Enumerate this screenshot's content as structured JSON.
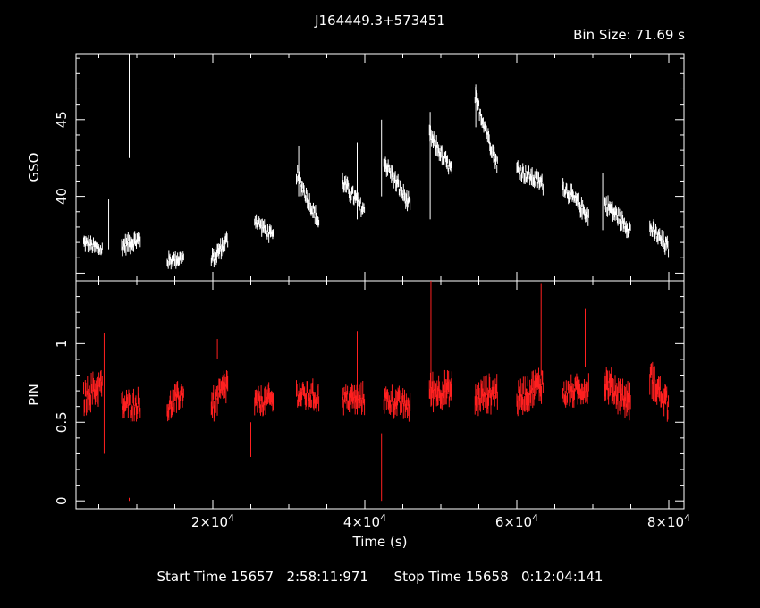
{
  "title": "J164449.3+573451",
  "bin_size": "Bin Size: 71.69 s",
  "footer": {
    "start_label": "Start Time 15657",
    "start_time": "2:58:11:971",
    "stop_label": "Stop Time 15658",
    "stop_time": "0:12:04:141"
  },
  "colors": {
    "gso": "#ffffff",
    "pin": "#ff2020",
    "axes": "#ffffff",
    "background": "#000000"
  },
  "chart_data": [
    {
      "type": "scatter",
      "name": "GSO panel",
      "ylabel": "GSO",
      "xlabel": "",
      "xlim": [
        2000,
        82000
      ],
      "ylim": [
        34.5,
        49.3
      ],
      "yticks": [
        {
          "value": 40,
          "label": "40"
        },
        {
          "value": 45,
          "label": "45"
        }
      ],
      "series": [
        {
          "segments": [
            {
              "t0": 3000,
              "t1": 5500,
              "y0": 37.0,
              "y1": 36.5,
              "noise": 0.6
            },
            {
              "t0": 8000,
              "t1": 10500,
              "y0": 36.8,
              "y1": 37.2,
              "noise": 0.7
            },
            {
              "t0": 14000,
              "t1": 16200,
              "y0": 35.8,
              "y1": 36.0,
              "noise": 0.6
            },
            {
              "t0": 19800,
              "t1": 22000,
              "y0": 35.8,
              "y1": 37.2,
              "noise": 0.7
            },
            {
              "t0": 25500,
              "t1": 28000,
              "y0": 38.5,
              "y1": 37.3,
              "noise": 0.6
            },
            {
              "t0": 31000,
              "t1": 34000,
              "y0": 41.5,
              "y1": 38.2,
              "noise": 0.7
            },
            {
              "t0": 37000,
              "t1": 40000,
              "y0": 41.0,
              "y1": 39.0,
              "noise": 0.7
            },
            {
              "t0": 42500,
              "t1": 46000,
              "y0": 42.3,
              "y1": 39.3,
              "noise": 0.7
            },
            {
              "t0": 48500,
              "t1": 51500,
              "y0": 44.0,
              "y1": 41.6,
              "noise": 0.7
            },
            {
              "t0": 54500,
              "t1": 57500,
              "y0": 46.5,
              "y1": 42.0,
              "noise": 0.7
            },
            {
              "t0": 60000,
              "t1": 63500,
              "y0": 41.8,
              "y1": 40.8,
              "noise": 0.7
            },
            {
              "t0": 66000,
              "t1": 69500,
              "y0": 40.7,
              "y1": 38.7,
              "noise": 0.7
            },
            {
              "t0": 71500,
              "t1": 75000,
              "y0": 39.6,
              "y1": 37.8,
              "noise": 0.7
            },
            {
              "t0": 77500,
              "t1": 80000,
              "y0": 38.0,
              "y1": 36.6,
              "noise": 0.7
            }
          ],
          "spikes": [
            {
              "t": 9000,
              "ylo": 42.5,
              "yhi": 49.3
            },
            {
              "t": 6300,
              "ylo": 36.5,
              "yhi": 39.8
            },
            {
              "t": 31300,
              "ylo": 40.0,
              "yhi": 43.3
            },
            {
              "t": 39000,
              "ylo": 38.5,
              "yhi": 43.5
            },
            {
              "t": 42200,
              "ylo": 40.0,
              "yhi": 45.0
            },
            {
              "t": 48600,
              "ylo": 38.5,
              "yhi": 45.5
            },
            {
              "t": 54600,
              "ylo": 44.5,
              "yhi": 47.3
            },
            {
              "t": 71300,
              "ylo": 37.8,
              "yhi": 41.5
            }
          ]
        }
      ]
    },
    {
      "type": "scatter",
      "name": "PIN panel",
      "ylabel": "PIN",
      "xlabel": "Time (s)",
      "xlim": [
        2000,
        82000
      ],
      "ylim": [
        -0.05,
        1.4
      ],
      "yticks": [
        {
          "value": 0,
          "label": "0"
        },
        {
          "value": 0.5,
          "label": "0.5"
        },
        {
          "value": 1,
          "label": "1"
        }
      ],
      "xticks": [
        {
          "value": 20000,
          "mantissa": "2",
          "exponent": "4"
        },
        {
          "value": 40000,
          "mantissa": "4",
          "exponent": "4"
        },
        {
          "value": 60000,
          "mantissa": "6",
          "exponent": "4"
        },
        {
          "value": 80000,
          "mantissa": "8",
          "exponent": "4"
        }
      ],
      "series": [
        {
          "segments": [
            {
              "t0": 3000,
              "t1": 5500,
              "y0": 0.65,
              "y1": 0.75,
              "noise": 0.12
            },
            {
              "t0": 8000,
              "t1": 10500,
              "y0": 0.6,
              "y1": 0.62,
              "noise": 0.1
            },
            {
              "t0": 14000,
              "t1": 16200,
              "y0": 0.58,
              "y1": 0.7,
              "noise": 0.1
            },
            {
              "t0": 19800,
              "t1": 22000,
              "y0": 0.6,
              "y1": 0.75,
              "noise": 0.12
            },
            {
              "t0": 25500,
              "t1": 28000,
              "y0": 0.62,
              "y1": 0.65,
              "noise": 0.1
            },
            {
              "t0": 31000,
              "t1": 34000,
              "y0": 0.68,
              "y1": 0.66,
              "noise": 0.1
            },
            {
              "t0": 37000,
              "t1": 40000,
              "y0": 0.65,
              "y1": 0.65,
              "noise": 0.1
            },
            {
              "t0": 42500,
              "t1": 46000,
              "y0": 0.65,
              "y1": 0.6,
              "noise": 0.1
            },
            {
              "t0": 48500,
              "t1": 51500,
              "y0": 0.7,
              "y1": 0.7,
              "noise": 0.12
            },
            {
              "t0": 54500,
              "t1": 57500,
              "y0": 0.65,
              "y1": 0.7,
              "noise": 0.12
            },
            {
              "t0": 60000,
              "t1": 63500,
              "y0": 0.65,
              "y1": 0.75,
              "noise": 0.12
            },
            {
              "t0": 66000,
              "t1": 69500,
              "y0": 0.68,
              "y1": 0.72,
              "noise": 0.1
            },
            {
              "t0": 71500,
              "t1": 75000,
              "y0": 0.75,
              "y1": 0.62,
              "noise": 0.12
            },
            {
              "t0": 77500,
              "t1": 80000,
              "y0": 0.8,
              "y1": 0.6,
              "noise": 0.12
            }
          ],
          "spikes": [
            {
              "t": 5700,
              "ylo": 0.3,
              "yhi": 1.07
            },
            {
              "t": 9000,
              "ylo": 0.0,
              "yhi": 0.02
            },
            {
              "t": 20600,
              "ylo": 0.9,
              "yhi": 1.03
            },
            {
              "t": 25000,
              "ylo": 0.28,
              "yhi": 0.5
            },
            {
              "t": 39000,
              "ylo": 0.55,
              "yhi": 1.08
            },
            {
              "t": 42200,
              "ylo": 0.0,
              "yhi": 0.43
            },
            {
              "t": 48700,
              "ylo": 0.6,
              "yhi": 1.4
            },
            {
              "t": 63200,
              "ylo": 0.8,
              "yhi": 1.38
            },
            {
              "t": 69000,
              "ylo": 0.85,
              "yhi": 1.22
            }
          ]
        }
      ]
    }
  ]
}
